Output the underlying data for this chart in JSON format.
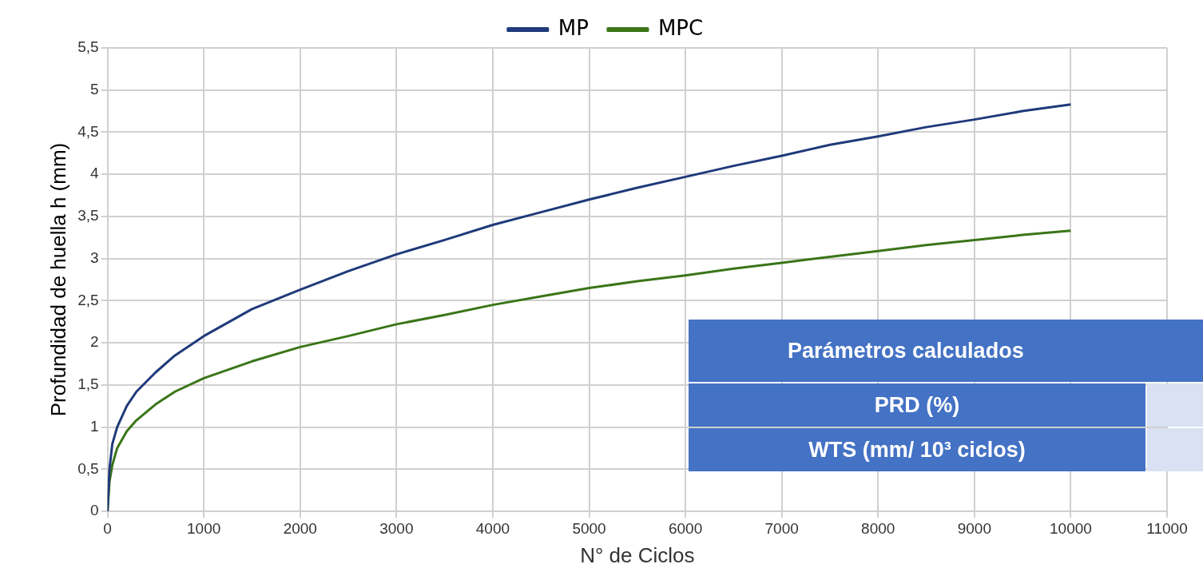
{
  "chart_data": {
    "type": "line",
    "xlabel": "N° de Ciclos",
    "ylabel": "Profundidad de huella h (mm)",
    "xlim": [
      0,
      11000
    ],
    "xticks": [
      0,
      1000,
      2000,
      3000,
      4000,
      5000,
      6000,
      7000,
      8000,
      9000,
      10000,
      11000
    ],
    "ylim": [
      0,
      5.5
    ],
    "yticks": [
      0,
      {
        "value": 0.5,
        "label": "0,5"
      },
      1,
      {
        "value": 1.5,
        "label": "1,5"
      },
      2,
      {
        "value": 2.5,
        "label": "2,5"
      },
      3,
      {
        "value": 3.5,
        "label": "3,5"
      },
      4,
      {
        "value": 4.5,
        "label": "4,5"
      },
      5,
      {
        "value": 5.5,
        "label": "5,5"
      }
    ],
    "x": [
      0,
      20,
      50,
      100,
      200,
      300,
      500,
      700,
      1000,
      1500,
      2000,
      2500,
      3000,
      3500,
      4000,
      4500,
      5000,
      5500,
      6000,
      6500,
      7000,
      7500,
      8000,
      8500,
      9000,
      9500,
      10000
    ],
    "series": [
      {
        "name": "MP",
        "color": "#1f3a7a",
        "values": [
          0,
          0.5,
          0.8,
          1.0,
          1.25,
          1.42,
          1.65,
          1.85,
          2.08,
          2.4,
          2.63,
          2.85,
          3.05,
          3.22,
          3.4,
          3.55,
          3.7,
          3.84,
          3.97,
          4.1,
          4.22,
          4.35,
          4.45,
          4.56,
          4.65,
          4.75,
          4.83
        ]
      },
      {
        "name": "MPC",
        "color": "#3a7518",
        "values": [
          0,
          0.35,
          0.55,
          0.75,
          0.95,
          1.08,
          1.27,
          1.42,
          1.58,
          1.78,
          1.95,
          2.08,
          2.22,
          2.33,
          2.45,
          2.55,
          2.65,
          2.73,
          2.8,
          2.88,
          2.95,
          3.02,
          3.09,
          3.16,
          3.22,
          3.28,
          3.33
        ]
      }
    ],
    "grid": true,
    "legend": "top",
    "marker": "none",
    "line_style": "solid",
    "annotations": [
      "Parámetros calculados",
      "PRD (%)",
      "WTS (mm/ 10³ ciclos)"
    ]
  }
}
